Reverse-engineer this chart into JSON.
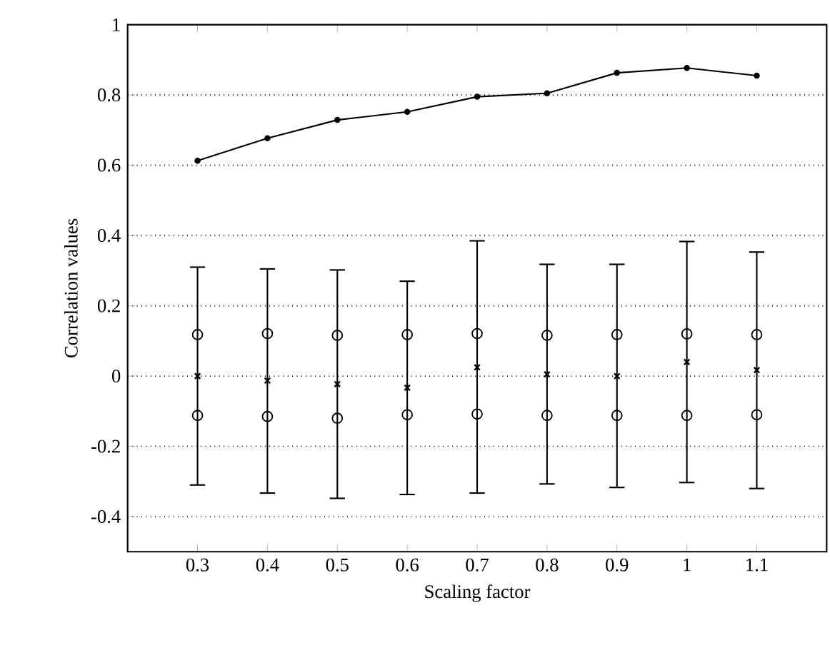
{
  "chart_data": {
    "type": "line",
    "xlabel": "Scaling factor",
    "ylabel": "Correlation values",
    "x": [
      0.3,
      0.4,
      0.5,
      0.6,
      0.7,
      0.8,
      0.9,
      1,
      1.1
    ],
    "series": [
      {
        "color": "#000000",
        "marker": "circle",
        "values": [
          0.613,
          0.677,
          0.729,
          0.752,
          0.795,
          0.805,
          0.863,
          0.877,
          0.855
        ]
      },
      {
        "type": "scatter",
        "color": "#000000",
        "marker": "cross",
        "values": [
          0,
          -0.013,
          -0.023,
          -0.033,
          0.025,
          0.005,
          0,
          0.04,
          0.017
        ],
        "errors": [
          [
            -0.31,
            0.31
          ],
          [
            -0.333,
            0.305
          ],
          [
            -0.348,
            0.302
          ],
          [
            -0.337,
            0.27
          ],
          [
            -0.333,
            0.385
          ],
          [
            -0.307,
            0.318
          ],
          [
            -0.317,
            0.318
          ],
          [
            -0.303,
            0.383
          ],
          [
            -0.32,
            0.353
          ]
        ]
      },
      {
        "type": "scatter",
        "color": "#000000",
        "marker": "circle",
        "values": [
          0.118,
          0.121,
          0.116,
          0.118,
          0.121,
          0.116,
          0.118,
          0.12,
          0.118
        ]
      },
      {
        "type": "scatter",
        "color": "#000000",
        "marker": "circle",
        "values": [
          -0.112,
          -0.115,
          -0.12,
          -0.11,
          -0.108,
          -0.112,
          -0.112,
          -0.112,
          -0.11
        ]
      }
    ],
    "xlim": [
      0.2,
      1.2
    ],
    "ylim": [
      -0.5,
      1
    ],
    "xticks": [
      0.3,
      0.4,
      0.5,
      0.6,
      0.7,
      0.8,
      0.9,
      1,
      1.1
    ],
    "yticks": [
      -0.4,
      -0.2,
      0,
      0.2,
      0.4,
      0.6,
      0.8,
      1
    ],
    "grid": "y"
  }
}
